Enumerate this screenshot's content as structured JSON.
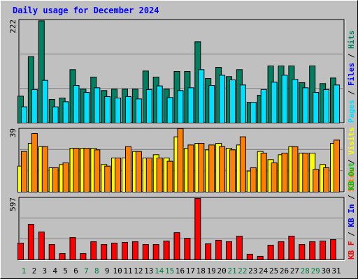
{
  "title": "Daily usage for December 2024",
  "legend_separator": " / ",
  "highlight_categories": [
    "1",
    "7",
    "8",
    "14",
    "15",
    "21",
    "22",
    "28",
    "29"
  ],
  "highlight_color": "#008040",
  "chart_data": [
    {
      "type": "bar",
      "ylim": [
        0,
        222
      ],
      "yticks": [
        222
      ],
      "series": [
        {
          "name": "Pages",
          "color": "#00e0ff",
          "values": [
            35,
            72,
            92,
            35,
            46,
            81,
            66,
            76,
            57,
            54,
            57,
            52,
            72,
            80,
            55,
            70,
            76,
            115,
            81,
            103,
            93,
            82,
            45,
            72,
            88,
            103,
            94,
            76,
            66,
            72,
            82
          ]
        },
        {
          "name": "Files",
          "color": "#0000ff"
        },
        {
          "name": "Hits",
          "color": "#008060",
          "values": [
            58,
            143,
            220,
            51,
            54,
            115,
            73,
            99,
            70,
            73,
            73,
            73,
            112,
            99,
            73,
            111,
            111,
            175,
            96,
            120,
            100,
            115,
            45,
            60,
            123,
            123,
            123,
            87,
            123,
            85,
            97
          ]
        }
      ]
    },
    {
      "type": "bar",
      "ylim": [
        0,
        39
      ],
      "yticks": [
        39
      ],
      "series": [
        {
          "name": "Sites",
          "color": "#ff8000",
          "values": [
            25,
            36,
            28,
            15,
            18,
            27,
            27,
            26,
            16,
            21,
            28,
            25,
            21,
            21,
            19,
            39,
            29,
            30,
            29,
            28,
            26,
            34,
            15,
            24,
            18,
            24,
            28,
            24,
            14,
            15,
            32
          ]
        },
        {
          "name": "Visits",
          "color": "#ffff00",
          "values": [
            16,
            30,
            28,
            15,
            17,
            27,
            27,
            27,
            17,
            21,
            21,
            25,
            21,
            23,
            21,
            34,
            27,
            30,
            26,
            30,
            27,
            29,
            13,
            25,
            20,
            23,
            28,
            24,
            24,
            17,
            30
          ]
        }
      ]
    },
    {
      "type": "bar",
      "ylim": [
        0,
        597
      ],
      "yticks": [
        597
      ],
      "categories": [
        "1",
        "2",
        "3",
        "4",
        "5",
        "6",
        "7",
        "8",
        "9",
        "10",
        "11",
        "12",
        "13",
        "14",
        "15",
        "16",
        "17",
        "18",
        "19",
        "20",
        "21",
        "22",
        "23",
        "24",
        "25",
        "26",
        "27",
        "28",
        "29",
        "30",
        "31"
      ],
      "series": [
        {
          "name": "KB F",
          "color": "#ff0000",
          "values": [
            161,
            342,
            268,
            147,
            60,
            214,
            60,
            174,
            147,
            161,
            168,
            174,
            147,
            147,
            181,
            261,
            208,
            590,
            154,
            188,
            174,
            228,
            54,
            34,
            141,
            174,
            228,
            147,
            174,
            181,
            194
          ]
        },
        {
          "name": "KB In",
          "color": "#0000ff"
        },
        {
          "name": "KB Out",
          "color": "#00c000"
        }
      ]
    }
  ]
}
